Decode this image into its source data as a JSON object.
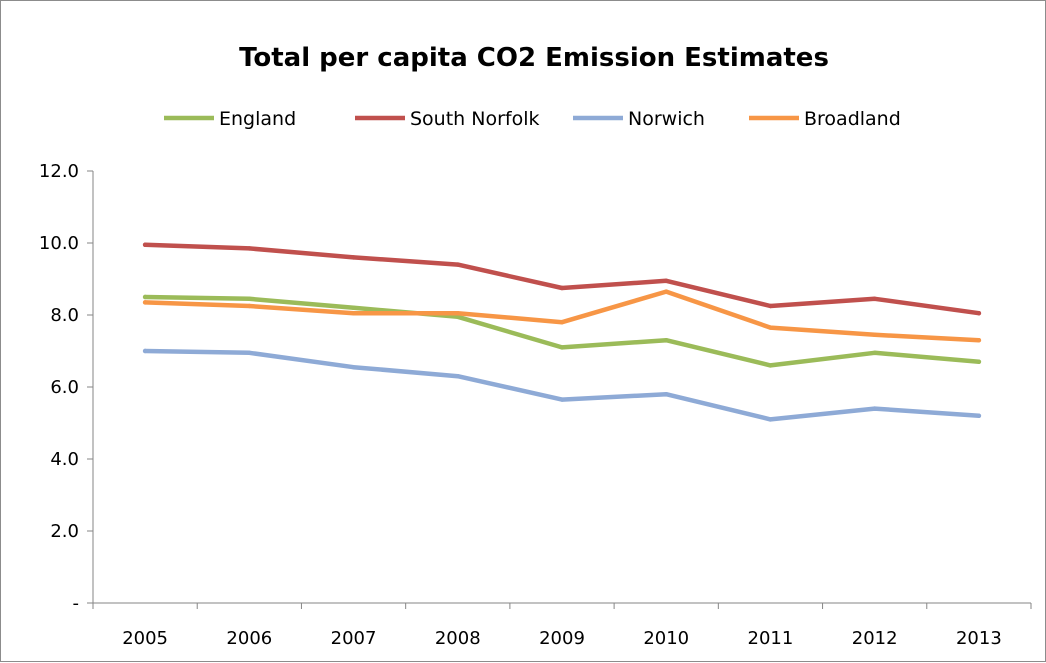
{
  "chart_data": {
    "type": "line",
    "title": "Total per capita CO2 Emission Estimates",
    "xlabel": "",
    "ylabel": "",
    "categories": [
      "2005",
      "2006",
      "2007",
      "2008",
      "2009",
      "2010",
      "2011",
      "2012",
      "2013"
    ],
    "ylim": [
      0,
      12
    ],
    "yticks": [
      0,
      2,
      4,
      6,
      8,
      10,
      12
    ],
    "ytick_labels": [
      "-",
      "2.0",
      "4.0",
      "6.0",
      "8.0",
      "10.0",
      "12.0"
    ],
    "grid": false,
    "legend_position": "top",
    "series": [
      {
        "name": "England",
        "color": "#9bbb59",
        "values": [
          8.5,
          8.45,
          8.2,
          7.95,
          7.1,
          7.3,
          6.6,
          6.95,
          6.7
        ]
      },
      {
        "name": "South Norfolk",
        "color": "#c0504d",
        "values": [
          9.95,
          9.85,
          9.6,
          9.4,
          8.75,
          8.95,
          8.25,
          8.45,
          8.05
        ]
      },
      {
        "name": "Norwich",
        "color": "#8eaad6",
        "values": [
          7.0,
          6.95,
          6.55,
          6.3,
          5.65,
          5.8,
          5.1,
          5.4,
          5.2
        ]
      },
      {
        "name": "Broadland",
        "color": "#f79646",
        "values": [
          8.35,
          8.25,
          8.05,
          8.05,
          7.8,
          8.65,
          7.65,
          7.45,
          7.3
        ]
      }
    ]
  }
}
